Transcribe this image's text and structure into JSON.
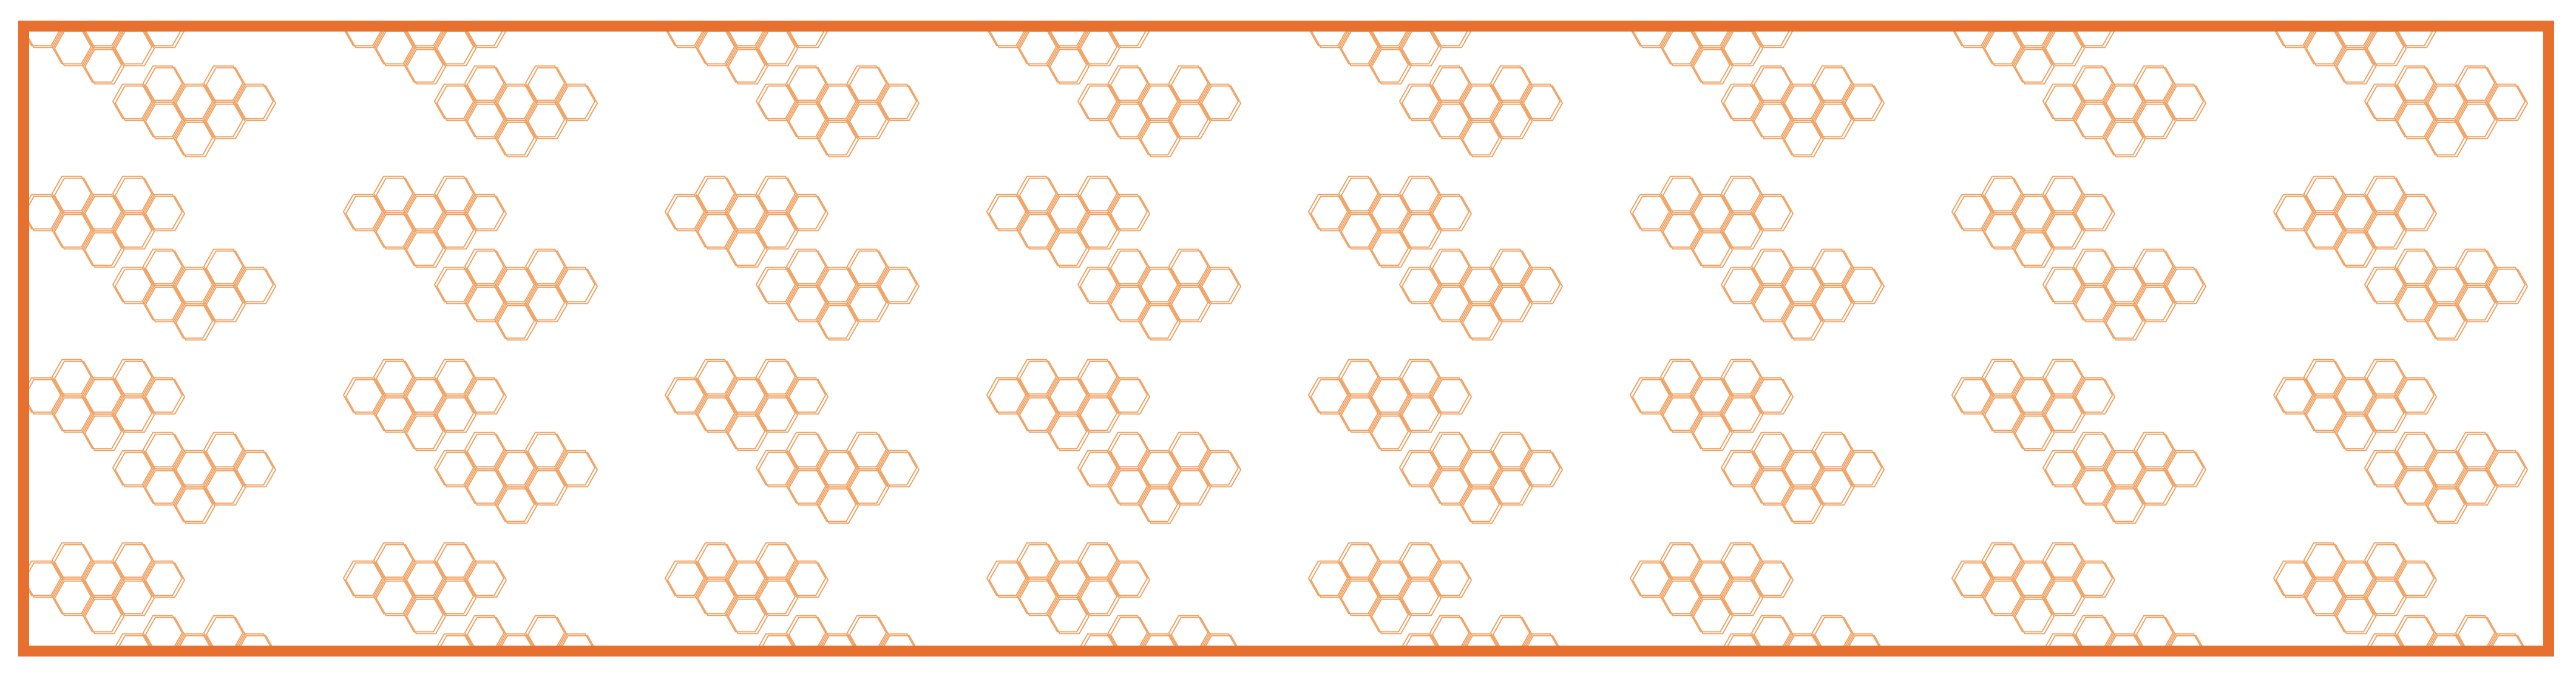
{
  "banner": {
    "accent_color": "#e8702f",
    "background_color": "#ffffff",
    "pattern": {
      "motif": "hexagon-cluster",
      "line_color": "#f0a060"
    }
  }
}
